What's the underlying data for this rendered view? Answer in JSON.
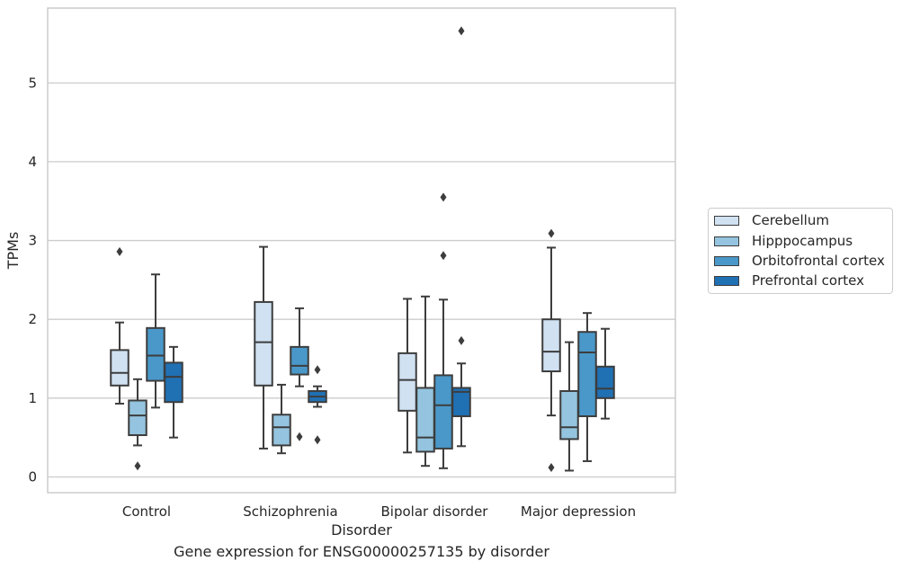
{
  "caption": "Gene expression for ENSG00000257135 by disorder",
  "chart_data": {
    "type": "boxplot",
    "xlabel": "Disorder",
    "ylabel": "TPMs",
    "categories": [
      "Control",
      "Schizophrenia",
      "Bipolar disorder",
      "Major depression"
    ],
    "yticks": [
      "0",
      "1",
      "2",
      "3",
      "4",
      "5"
    ],
    "ylim": [
      -0.2,
      5.95
    ],
    "grid": "horizontal",
    "legend_position": "right",
    "series": [
      {
        "name": "Cerebellum",
        "color": "#d0e1f2",
        "boxes": [
          {
            "whisker_low": 0.93,
            "q1": 1.16,
            "median": 1.32,
            "q3": 1.61,
            "whisker_high": 1.96,
            "outliers": [
              2.86
            ]
          },
          {
            "whisker_low": 0.36,
            "q1": 1.16,
            "median": 1.71,
            "q3": 2.22,
            "whisker_high": 2.92,
            "outliers": []
          },
          {
            "whisker_low": 0.31,
            "q1": 0.84,
            "median": 1.23,
            "q3": 1.57,
            "whisker_high": 2.26,
            "outliers": []
          },
          {
            "whisker_low": 0.78,
            "q1": 1.34,
            "median": 1.59,
            "q3": 2.0,
            "whisker_high": 2.91,
            "outliers": [
              0.12,
              3.09
            ]
          }
        ]
      },
      {
        "name": "Hipppocampus",
        "color": "#94c4df",
        "boxes": [
          {
            "whisker_low": 0.4,
            "q1": 0.53,
            "median": 0.78,
            "q3": 0.97,
            "whisker_high": 1.24,
            "outliers": [
              0.14
            ]
          },
          {
            "whisker_low": 0.3,
            "q1": 0.4,
            "median": 0.63,
            "q3": 0.79,
            "whisker_high": 1.17,
            "outliers": []
          },
          {
            "whisker_low": 0.14,
            "q1": 0.32,
            "median": 0.5,
            "q3": 1.13,
            "whisker_high": 2.29,
            "outliers": []
          },
          {
            "whisker_low": 0.08,
            "q1": 0.48,
            "median": 0.63,
            "q3": 1.09,
            "whisker_high": 1.71,
            "outliers": []
          }
        ]
      },
      {
        "name": "Orbitofrontal cortex",
        "color": "#4a98c9",
        "boxes": [
          {
            "whisker_low": 0.88,
            "q1": 1.22,
            "median": 1.54,
            "q3": 1.89,
            "whisker_high": 2.57,
            "outliers": []
          },
          {
            "whisker_low": 1.15,
            "q1": 1.3,
            "median": 1.41,
            "q3": 1.65,
            "whisker_high": 2.14,
            "outliers": [
              0.51
            ]
          },
          {
            "whisker_low": 0.11,
            "q1": 0.36,
            "median": 0.91,
            "q3": 1.29,
            "whisker_high": 2.25,
            "outliers": [
              2.81,
              3.55
            ]
          },
          {
            "whisker_low": 0.2,
            "q1": 0.77,
            "median": 1.58,
            "q3": 1.84,
            "whisker_high": 2.08,
            "outliers": []
          }
        ]
      },
      {
        "name": "Prefrontal cortex",
        "color": "#2070b4",
        "boxes": [
          {
            "whisker_low": 0.5,
            "q1": 0.95,
            "median": 1.27,
            "q3": 1.45,
            "whisker_high": 1.65,
            "outliers": []
          },
          {
            "whisker_low": 0.89,
            "q1": 0.95,
            "median": 1.02,
            "q3": 1.09,
            "whisker_high": 1.15,
            "outliers": [
              0.47,
              1.36
            ]
          },
          {
            "whisker_low": 0.39,
            "q1": 0.77,
            "median": 1.08,
            "q3": 1.13,
            "whisker_high": 1.44,
            "outliers": [
              1.73,
              5.66
            ]
          },
          {
            "whisker_low": 0.74,
            "q1": 1.0,
            "median": 1.12,
            "q3": 1.4,
            "whisker_high": 1.88,
            "outliers": []
          }
        ]
      }
    ]
  }
}
